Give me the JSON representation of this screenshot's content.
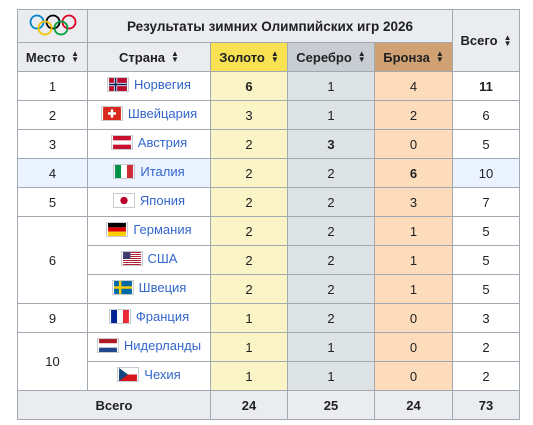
{
  "table": {
    "title": "Результаты зимних Олимпийских игр 2026",
    "headers": {
      "place": "Место",
      "country": "Страна",
      "gold": "Золото",
      "silver": "Серебро",
      "bronze": "Бронза",
      "total": "Всего"
    },
    "rows": [
      {
        "place": "1",
        "flag": "norway-flag",
        "country": "Норвегия",
        "gold": "6",
        "silver": "1",
        "bronze": "4",
        "total": "11"
      },
      {
        "place": "2",
        "flag": "switzerland-flag",
        "country": "Швейцария",
        "gold": "3",
        "silver": "1",
        "bronze": "2",
        "total": "6"
      },
      {
        "place": "3",
        "flag": "austria-flag",
        "country": "Австрия",
        "gold": "2",
        "silver": "3",
        "bronze": "0",
        "total": "5"
      },
      {
        "place": "4",
        "flag": "italy-flag",
        "country": "Италия",
        "gold": "2",
        "silver": "2",
        "bronze": "6",
        "total": "10"
      },
      {
        "place": "5",
        "flag": "japan-flag",
        "country": "Япония",
        "gold": "2",
        "silver": "2",
        "bronze": "3",
        "total": "7"
      },
      {
        "place": "6",
        "flag": "germany-flag",
        "country": "Германия",
        "gold": "2",
        "silver": "2",
        "bronze": "1",
        "total": "5"
      },
      {
        "place": "",
        "flag": "usa-flag",
        "country": "США",
        "gold": "2",
        "silver": "2",
        "bronze": "1",
        "total": "5"
      },
      {
        "place": "",
        "flag": "sweden-flag",
        "country": "Швеция",
        "gold": "2",
        "silver": "2",
        "bronze": "1",
        "total": "5"
      },
      {
        "place": "9",
        "flag": "france-flag",
        "country": "Франция",
        "gold": "1",
        "silver": "2",
        "bronze": "0",
        "total": "3"
      },
      {
        "place": "10",
        "flag": "netherlands-flag",
        "country": "Нидерланды",
        "gold": "1",
        "silver": "1",
        "bronze": "0",
        "total": "2"
      },
      {
        "place": "",
        "flag": "czechia-flag",
        "country": "Чехия",
        "gold": "1",
        "silver": "1",
        "bronze": "0",
        "total": "2"
      }
    ],
    "totals": {
      "label": "Всего",
      "gold": "24",
      "silver": "25",
      "bronze": "24",
      "total": "73"
    }
  },
  "colors": {
    "gold_header": "#f9e154",
    "silver_header": "#c8cdd3",
    "bronze_header": "#d0a173",
    "link": "#3366cc"
  }
}
